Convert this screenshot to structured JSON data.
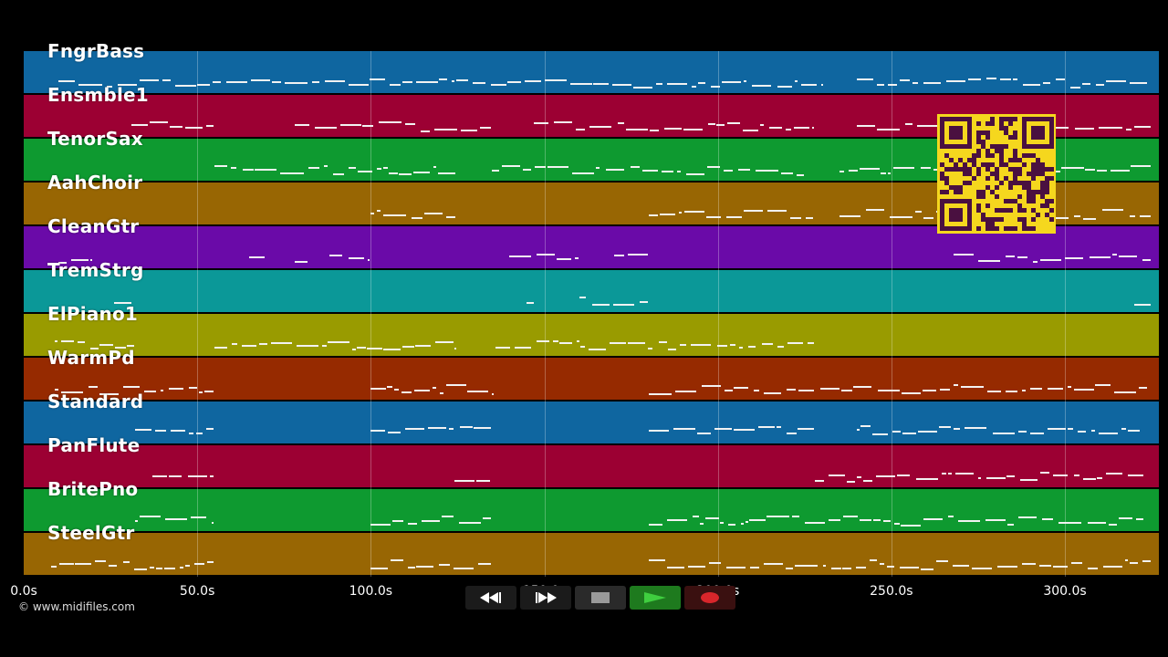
{
  "app": {
    "copyright": "© www.midifiles.com"
  },
  "tracks": [
    {
      "name": "FngrBass",
      "color": "#0f66a0"
    },
    {
      "name": "Ensmble1",
      "color": "#9c0033"
    },
    {
      "name": "TenorSax",
      "color": "#0e9a30"
    },
    {
      "name": "AahChoir",
      "color": "#986603"
    },
    {
      "name": "CleanGtr",
      "color": "#6a0aa8"
    },
    {
      "name": "TremStrg",
      "color": "#0b9898"
    },
    {
      "name": "ElPiano1",
      "color": "#999b00"
    },
    {
      "name": "WarmPd",
      "color": "#962a00"
    },
    {
      "name": "Standard",
      "color": "#0f66a0"
    },
    {
      "name": "PanFlute",
      "color": "#9c0033"
    },
    {
      "name": "BritePno",
      "color": "#0e9a30"
    },
    {
      "name": "SteelGtr",
      "color": "#986603"
    }
  ],
  "timeline": {
    "ticks": [
      "0.0s",
      "50.0s",
      "100.0s",
      "150.0s",
      "200.0s",
      "250.0s",
      "300.0s"
    ]
  },
  "transport": {
    "rewind_icon": "rewind-icon",
    "forward_icon": "fast-forward-icon",
    "stop_icon": "stop-icon",
    "play_icon": "play-icon",
    "record_icon": "record-icon"
  },
  "colors": {
    "background": "#000000",
    "qr_bg": "#f5d71e",
    "qr_fg": "#4a1040"
  }
}
